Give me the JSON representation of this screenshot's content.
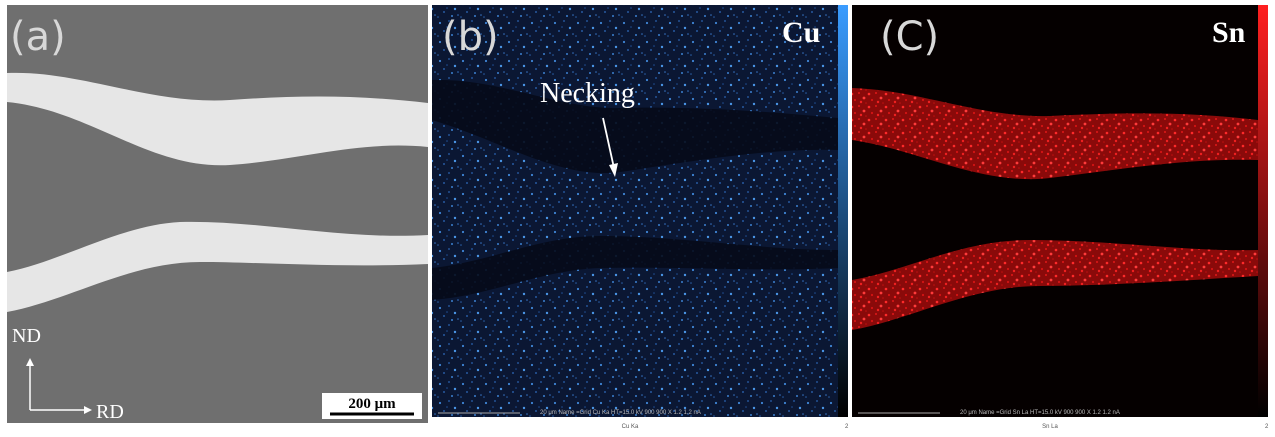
{
  "panels": [
    {
      "label": "(a)",
      "orientation": {
        "vertical": "ND",
        "horizontal": "RD"
      },
      "scale_bar": "200 μm"
    },
    {
      "label": "(b)",
      "element": "Cu",
      "annotation": "Necking",
      "footer": "20 μm   Name =Grid Cu Ka   HT=15.0 kV   900 900 X   1.2 1.2 nA",
      "channel": "Cu Ka",
      "colorbar_max": "2"
    },
    {
      "label": "(C)",
      "element": "Sn",
      "footer": "20 μm   Name =Grid Sn La   HT=15.0 kV   900 900 X   1.2 1.2 nA",
      "channel": "Sn La",
      "colorbar_max": "2"
    }
  ]
}
